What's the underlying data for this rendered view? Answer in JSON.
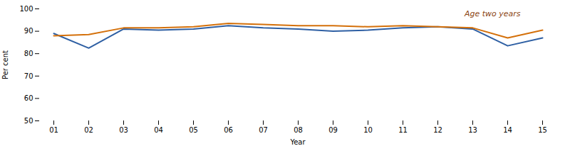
{
  "chart_data": {
    "type": "line",
    "categories": [
      "01",
      "02",
      "03",
      "04",
      "05",
      "06",
      "07",
      "08",
      "09",
      "10",
      "11",
      "12",
      "13",
      "14",
      "15"
    ],
    "series": [
      {
        "color": "#2E5FA3",
        "values": [
          89.0,
          82.5,
          91.0,
          90.5,
          91.0,
          92.5,
          91.5,
          91.0,
          90.0,
          90.5,
          91.5,
          92.0,
          91.0,
          83.5,
          87.0
        ]
      },
      {
        "color": "#D4700A",
        "values": [
          88.0,
          88.5,
          91.5,
          91.5,
          92.0,
          93.5,
          93.0,
          92.5,
          92.5,
          92.0,
          92.5,
          92.0,
          91.5,
          87.0,
          90.5
        ]
      }
    ],
    "xlabel": "Year",
    "ylabel": "Per cent",
    "ylim": [
      50,
      100
    ],
    "yticks": [
      50,
      60,
      70,
      80,
      90,
      100
    ],
    "grid": false,
    "annotations": [
      {
        "text": "Age two years",
        "color": "#8B4513"
      }
    ]
  }
}
